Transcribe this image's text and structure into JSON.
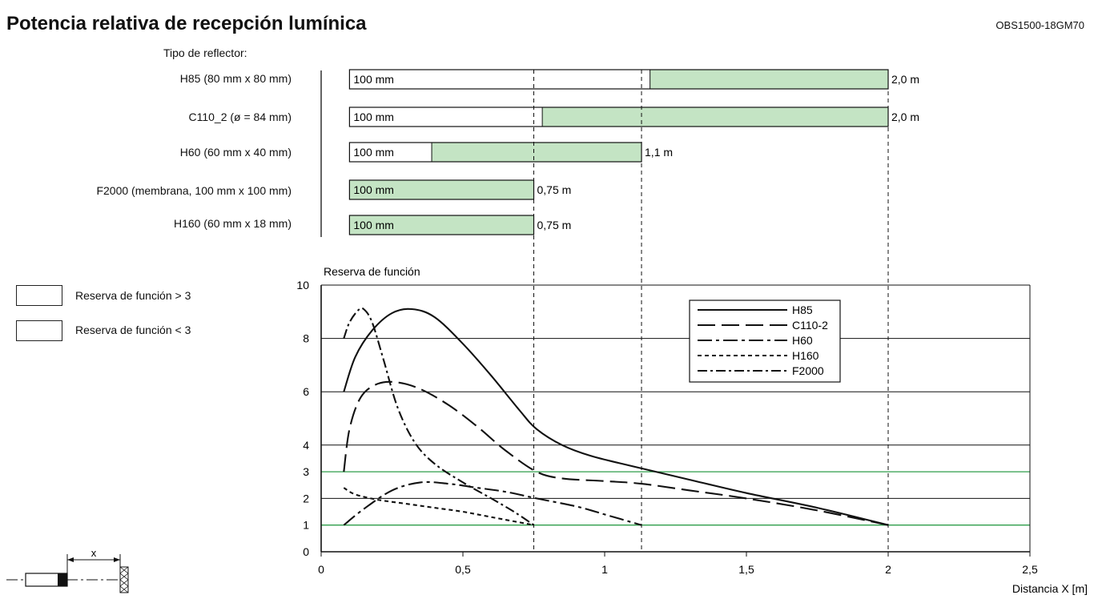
{
  "header": {
    "title": "Potencia relativa de recepción lumínica",
    "model": "OBS1500-18GM70"
  },
  "reflector_heading": "Tipo de reflector:",
  "legend_reserve": [
    {
      "label": "Reserva de función > 3",
      "color": "#ffffff"
    },
    {
      "label": "Reserva de función < 3",
      "color": "#c4e4c4"
    }
  ],
  "colors": {
    "green_fill": "#c4e4c4",
    "green_line": "#2e9e4a",
    "ink": "#111111"
  },
  "chart_data": [
    {
      "type": "bar",
      "orientation": "horizontal",
      "title": "",
      "categories": [
        "H85 (80 mm x 80 mm)",
        "C110_2 (ø = 84 mm)",
        "H60 (60 mm x 40 mm)",
        "F2000 (membrana, 100 mm x 100 mm)",
        "H160 (60 mm x 18 mm)"
      ],
      "start_labels": [
        "100 mm",
        "100 mm",
        "100 mm",
        "100 mm",
        "100 mm"
      ],
      "start": [
        0.1,
        0.1,
        0.1,
        0.1,
        0.1
      ],
      "reserve_gt3_end": [
        1.16,
        0.78,
        0.39,
        0.1,
        0.1
      ],
      "end": [
        2.0,
        2.0,
        1.13,
        0.75,
        0.75
      ],
      "end_labels": [
        "2,0 m",
        "2,0 m",
        "1,1 m",
        "0,75 m",
        "0,75 m"
      ],
      "xlim": [
        0,
        2.5
      ]
    },
    {
      "type": "line",
      "ylabel": "Reserva de función",
      "xlabel": "Distancia X [m]",
      "xlim": [
        0,
        2.5
      ],
      "ylim": [
        0,
        10
      ],
      "x_ticks": [
        0,
        0.5,
        1,
        1.5,
        2,
        2.5
      ],
      "x_tick_labels": [
        "0",
        "0,5",
        "1",
        "1,5",
        "2",
        "2,5"
      ],
      "y_ticks": [
        0,
        1,
        2,
        3,
        4,
        6,
        8,
        10
      ],
      "y_tick_labels": [
        "0",
        "1",
        "2",
        "3",
        "4",
        "6",
        "8",
        "10"
      ],
      "grid": true,
      "threshold_lines": [
        1,
        3
      ],
      "reference_x": [
        0.75,
        1.13,
        2.0
      ],
      "legend_position": "top-right",
      "series": [
        {
          "name": "H85",
          "dash": "solid",
          "x": [
            0.08,
            0.12,
            0.18,
            0.25,
            0.32,
            0.4,
            0.5,
            0.6,
            0.7,
            0.76,
            0.85,
            0.95,
            1.1,
            1.3,
            1.5,
            1.75,
            2.0
          ],
          "y": [
            6.0,
            7.3,
            8.3,
            8.95,
            9.1,
            8.8,
            7.8,
            6.6,
            5.3,
            4.6,
            4.0,
            3.6,
            3.2,
            2.7,
            2.2,
            1.65,
            1.0
          ]
        },
        {
          "name": "C110-2",
          "dash": "long-dash",
          "x": [
            0.08,
            0.1,
            0.14,
            0.2,
            0.27,
            0.35,
            0.45,
            0.55,
            0.65,
            0.76,
            0.85,
            1.0,
            1.13,
            1.3,
            1.5,
            1.75,
            2.0
          ],
          "y": [
            3.0,
            4.6,
            5.8,
            6.3,
            6.35,
            6.1,
            5.5,
            4.7,
            3.8,
            3.0,
            2.75,
            2.65,
            2.55,
            2.3,
            2.0,
            1.55,
            1.0
          ]
        },
        {
          "name": "H60",
          "dash": "dash-dot-long",
          "x": [
            0.08,
            0.15,
            0.25,
            0.35,
            0.45,
            0.55,
            0.65,
            0.76,
            0.9,
            1.0,
            1.13
          ],
          "y": [
            1.0,
            1.6,
            2.3,
            2.6,
            2.55,
            2.4,
            2.25,
            2.0,
            1.7,
            1.4,
            1.0
          ]
        },
        {
          "name": "H160",
          "dash": "short-dash",
          "x": [
            0.08,
            0.12,
            0.2,
            0.3,
            0.4,
            0.5,
            0.6,
            0.75
          ],
          "y": [
            2.4,
            2.15,
            1.95,
            1.8,
            1.65,
            1.5,
            1.3,
            1.0
          ]
        },
        {
          "name": "F2000",
          "dash": "dash-dot",
          "x": [
            0.08,
            0.1,
            0.13,
            0.15,
            0.18,
            0.22,
            0.27,
            0.33,
            0.4,
            0.5,
            0.6,
            0.68,
            0.75
          ],
          "y": [
            8.0,
            8.6,
            9.05,
            9.1,
            8.6,
            7.2,
            5.4,
            4.1,
            3.3,
            2.6,
            2.0,
            1.5,
            1.0
          ]
        }
      ]
    }
  ]
}
